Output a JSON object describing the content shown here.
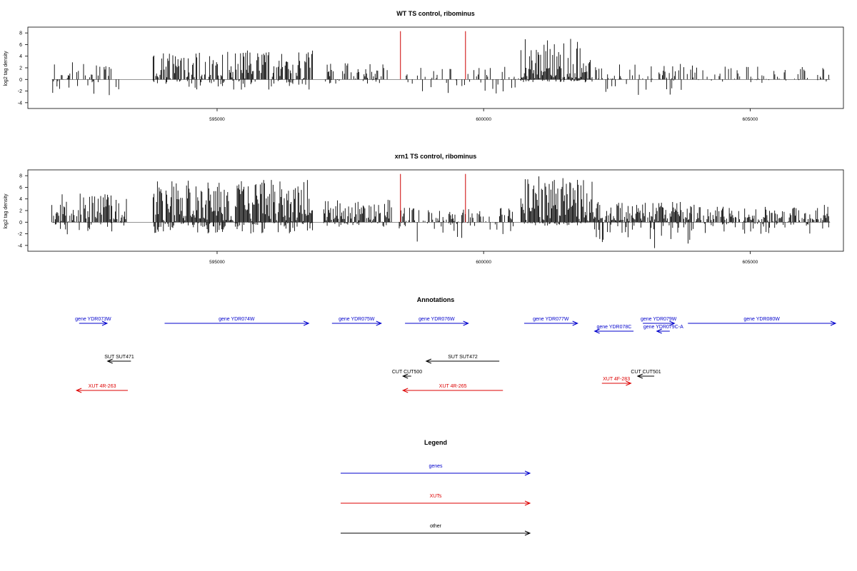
{
  "colors": {
    "gene": "#0000cc",
    "xut": "#dd0000",
    "other": "#000000",
    "marker": "#cc0000"
  },
  "chart_data": [
    {
      "type": "bar",
      "title": "WT TS control, ribominus",
      "ylabel": "log2 tag density",
      "yticks": [
        "-4",
        "-2",
        "0",
        "2",
        "4",
        "6",
        "8"
      ],
      "ylim": [
        -5,
        9
      ],
      "xlim": [
        591450,
        606750
      ],
      "xticks": [
        595000,
        600000,
        605000
      ],
      "xtick_labels": [
        "595000",
        "600000",
        "605000"
      ],
      "markers": [
        598440,
        599660
      ],
      "regions": [
        {
          "start": 591900,
          "end": 593200,
          "pos_max": 3.0,
          "neg_max": 4.0,
          "density": 0.35,
          "seed": 11
        },
        {
          "start": 593800,
          "end": 596800,
          "pos_max": 5.0,
          "neg_max": 1.8,
          "density": 0.75,
          "seed": 12
        },
        {
          "start": 597000,
          "end": 598200,
          "pos_max": 3.0,
          "neg_max": 0.8,
          "density": 0.55,
          "seed": 13
        },
        {
          "start": 598500,
          "end": 600700,
          "pos_max": 2.2,
          "neg_max": 2.5,
          "density": 0.25,
          "seed": 14
        },
        {
          "start": 600700,
          "end": 602050,
          "pos_max": 7.0,
          "neg_max": 0.5,
          "density": 1.0,
          "seed": 15
        },
        {
          "start": 602100,
          "end": 604000,
          "pos_max": 3.0,
          "neg_max": 4.0,
          "density": 0.35,
          "seed": 16
        },
        {
          "start": 604000,
          "end": 606500,
          "pos_max": 2.5,
          "neg_max": 0.6,
          "density": 0.3,
          "seed": 17
        }
      ]
    },
    {
      "type": "bar",
      "title": "xrn1 TS control, ribominus",
      "ylabel": "log2 tag density",
      "yticks": [
        "-4",
        "-2",
        "0",
        "2",
        "4",
        "6",
        "8"
      ],
      "ylim": [
        -5,
        9
      ],
      "xlim": [
        591450,
        606750
      ],
      "xticks": [
        595000,
        600000,
        605000
      ],
      "xtick_labels": [
        "595000",
        "600000",
        "605000"
      ],
      "markers": [
        598440,
        599660
      ],
      "regions": [
        {
          "start": 591900,
          "end": 593300,
          "pos_max": 5.0,
          "neg_max": 2.5,
          "density": 0.8,
          "seed": 21
        },
        {
          "start": 593800,
          "end": 596800,
          "pos_max": 7.5,
          "neg_max": 2.0,
          "density": 1.0,
          "seed": 22
        },
        {
          "start": 597000,
          "end": 598300,
          "pos_max": 4.0,
          "neg_max": 0.8,
          "density": 0.8,
          "seed": 23
        },
        {
          "start": 598400,
          "end": 600600,
          "pos_max": 2.5,
          "neg_max": 3.5,
          "density": 0.5,
          "seed": 24
        },
        {
          "start": 600700,
          "end": 602050,
          "pos_max": 8.0,
          "neg_max": 0.6,
          "density": 1.0,
          "seed": 25
        },
        {
          "start": 602050,
          "end": 603900,
          "pos_max": 3.5,
          "neg_max": 4.5,
          "density": 0.9,
          "seed": 26
        },
        {
          "start": 603900,
          "end": 606500,
          "pos_max": 3.0,
          "neg_max": 2.0,
          "density": 0.7,
          "seed": 27
        }
      ]
    }
  ],
  "annotations": {
    "title": "Annotations",
    "features": [
      {
        "label": "gene YDR073W",
        "type": "gene",
        "strand": "+",
        "start": 592150,
        "end": 592690,
        "row": 0
      },
      {
        "label": "gene YDR074W",
        "type": "gene",
        "strand": "+",
        "start": 593800,
        "end": 596580,
        "row": 0
      },
      {
        "label": "gene YDR075W",
        "type": "gene",
        "strand": "+",
        "start": 597030,
        "end": 597980,
        "row": 0
      },
      {
        "label": "gene YDR076W",
        "type": "gene",
        "strand": "+",
        "start": 598440,
        "end": 599660,
        "row": 0
      },
      {
        "label": "gene YDR077W",
        "type": "gene",
        "strand": "+",
        "start": 600740,
        "end": 601770,
        "row": 0
      },
      {
        "label": "gene YDR079W",
        "type": "gene",
        "strand": "+",
        "start": 603030,
        "end": 603640,
        "row": 0
      },
      {
        "label": "gene YDR080W",
        "type": "gene",
        "strand": "+",
        "start": 603900,
        "end": 606750,
        "row": 0
      },
      {
        "label": "gene YDR078C",
        "type": "gene",
        "strand": "-",
        "start": 602100,
        "end": 602850,
        "row": 1
      },
      {
        "label": "gene YDR079C-A",
        "type": "gene",
        "strand": "-",
        "start": 603300,
        "end": 603550,
        "row": 1
      },
      {
        "label": "SUT SUT471",
        "type": "other",
        "strand": "-",
        "start": 592700,
        "end": 593150,
        "row": 2
      },
      {
        "label": "SUT SUT472",
        "type": "other",
        "strand": "-",
        "start": 598850,
        "end": 600260,
        "row": 2
      },
      {
        "label": "CUT CUT500",
        "type": "other",
        "strand": "-",
        "start": 598400,
        "end": 598560,
        "row": 3
      },
      {
        "label": "CUT CUT501",
        "type": "other",
        "strand": "-",
        "start": 602930,
        "end": 603250,
        "row": 3
      },
      {
        "label": "XUT 4F-283",
        "type": "xut",
        "strand": "+",
        "start": 602240,
        "end": 602800,
        "row": 4
      },
      {
        "label": "XUT 4R-263",
        "type": "xut",
        "strand": "-",
        "start": 592100,
        "end": 593090,
        "row": 5
      },
      {
        "label": "XUT 4R-265",
        "type": "xut",
        "strand": "-",
        "start": 598400,
        "end": 600330,
        "row": 5
      }
    ]
  },
  "legend": {
    "title": "Legend",
    "items": [
      {
        "label": "genes",
        "type": "gene"
      },
      {
        "label": "XUTs",
        "type": "xut"
      },
      {
        "label": "other",
        "type": "other"
      }
    ]
  }
}
